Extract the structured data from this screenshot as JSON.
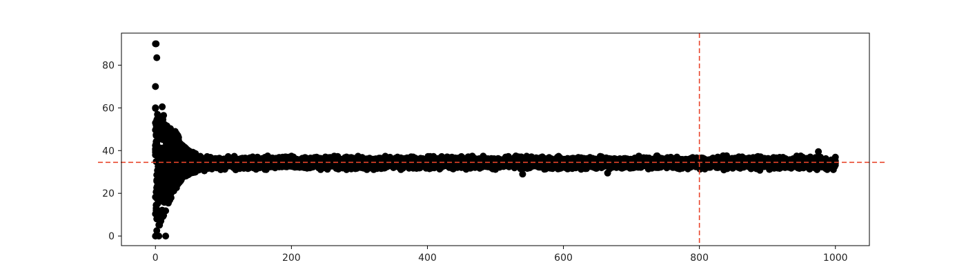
{
  "chart_data": {
    "type": "scatter",
    "title": "",
    "xlabel": "",
    "ylabel": "",
    "xlim": [
      -50,
      1050
    ],
    "ylim": [
      -4.5,
      95
    ],
    "xticks": [
      0,
      200,
      400,
      600,
      800,
      1000
    ],
    "yticks": [
      0,
      20,
      40,
      60,
      80
    ],
    "grid": false,
    "legend": "none",
    "series": [
      {
        "color": "#000000",
        "marker": "circle",
        "x_range": [
          0,
          1000
        ],
        "center_value": 34.5,
        "outliers": [
          {
            "x": 0,
            "y": 90
          },
          {
            "x": 1,
            "y": 90
          },
          {
            "x": 2,
            "y": 83.5
          },
          {
            "x": 0,
            "y": 70
          },
          {
            "x": 0,
            "y": 60
          },
          {
            "x": 10,
            "y": 60.5
          },
          {
            "x": 12,
            "y": 56.5
          },
          {
            "x": 3,
            "y": 55
          },
          {
            "x": 0,
            "y": 0
          },
          {
            "x": 5,
            "y": 0
          },
          {
            "x": 15,
            "y": 0
          },
          {
            "x": 2,
            "y": 2.5
          },
          {
            "x": 540,
            "y": 29
          },
          {
            "x": 665,
            "y": 29.5
          },
          {
            "x": 975,
            "y": 39.5
          }
        ],
        "band": [
          {
            "x": 0,
            "low": 0,
            "high": 60
          },
          {
            "x": 10,
            "low": 8,
            "high": 55
          },
          {
            "x": 20,
            "low": 15,
            "high": 51
          },
          {
            "x": 30,
            "low": 22,
            "high": 49
          },
          {
            "x": 40,
            "low": 27,
            "high": 43
          },
          {
            "x": 50,
            "low": 29,
            "high": 40
          },
          {
            "x": 60,
            "low": 30,
            "high": 38.5
          },
          {
            "x": 80,
            "low": 30.5,
            "high": 38
          },
          {
            "x": 1000,
            "low": 30.5,
            "high": 38
          }
        ]
      }
    ],
    "reference_lines": [
      {
        "orientation": "horizontal",
        "value": 34.5,
        "color": "#e8442a",
        "style": "dashed"
      },
      {
        "orientation": "vertical",
        "value": 800,
        "color": "#e8442a",
        "style": "dashed"
      }
    ]
  }
}
